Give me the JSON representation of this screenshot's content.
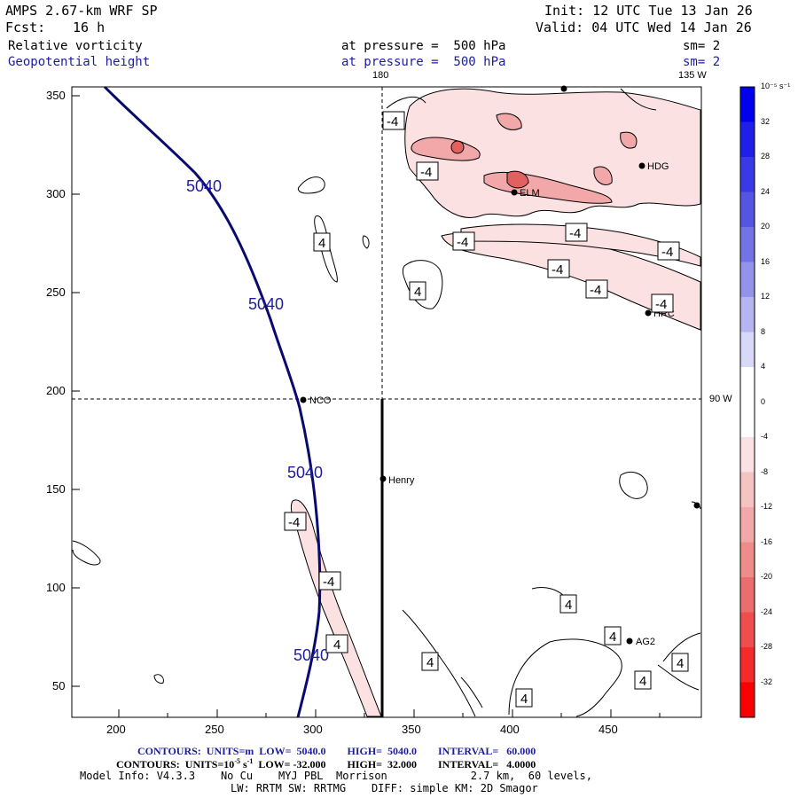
{
  "header": {
    "model": "AMPS 2.67-km WRF SP",
    "forecast_label": "Fcst:",
    "forecast_hours": "16 h",
    "init": "Init: 12 UTC Tue 13 Jan 26",
    "valid": "Valid: 04 UTC Wed 14 Jan 26",
    "field1_name": "Relative vorticity",
    "field1_pressure": "at pressure =  500 hPa",
    "field1_sm": "sm= 2",
    "field2_name": "Geopotential height",
    "field2_pressure": "at pressure =  500 hPa",
    "field2_sm": "sm= 2"
  },
  "colors": {
    "height_contour": "#0a0a6e",
    "label_blue": "#1c1ca0",
    "neg_light": "#fbe1e1",
    "neg_mid": "#f2a8a8",
    "neg_dark": "#e26060"
  },
  "map": {
    "x_ticks": [
      "200",
      "250",
      "300",
      "350",
      "400",
      "450"
    ],
    "y_ticks": [
      "350",
      "300",
      "250",
      "200",
      "150",
      "100",
      "50"
    ],
    "lon_labels": {
      "top_180": "180",
      "top_135w": "135 W",
      "right_90w": "90 W"
    },
    "stations": [
      "NCO",
      "Henry",
      "HDG",
      "HRC",
      "AG2",
      "ELM"
    ],
    "height_value": "5040",
    "height_labels": [
      "5040",
      "5040",
      "5040",
      "5040"
    ],
    "vort_labels_neg": [
      "-4",
      "-4",
      "-4",
      "-4",
      "-4",
      "-4",
      "-4",
      "-4",
      "-4",
      "-4"
    ],
    "vort_labels_pos": [
      "4",
      "4",
      "4",
      "4",
      "4",
      "4",
      "4",
      "4",
      "4"
    ]
  },
  "colorbar": {
    "unit": "10⁻⁵ s⁻¹",
    "labels": [
      "32",
      "28",
      "24",
      "20",
      "16",
      "12",
      "8",
      "4",
      "0",
      "-4",
      "-8",
      "-12",
      "-16",
      "-20",
      "-24",
      "-28",
      "-32"
    ],
    "colors": [
      "#0000ee",
      "#1f1fe8",
      "#3939e6",
      "#5555e2",
      "#7373e6",
      "#9393ec",
      "#b5b5f2",
      "#d8d8f8",
      "#ffffff",
      "#ffffff",
      "#fbe1e1",
      "#f6c3c3",
      "#f2a8a8",
      "#ee8c8c",
      "#ea6e6e",
      "#f04e4e",
      "#f52a2a",
      "#fa0000"
    ]
  },
  "footer": {
    "contours1": "CONTOURS:  UNITS=m  LOW=  5040.0        HIGH=  5040.0        INTERVAL=   60.000",
    "contours2_a": "CONTOURS:  UNITS=10",
    "contours2_exp": "-5",
    "contours2_b": " s",
    "contours2_exp2": "-1",
    "contours2_c": "  LOW= -32.000        HIGH=  32.000        INTERVAL=   4.0000",
    "model_info": "Model Info: V4.3.3    No Cu    MYJ PBL  Morrison             2.7 km,  60 levels,",
    "model_info2": "LW: RRTM SW: RRTMG    DIFF: simple KM: 2D Smagor"
  }
}
